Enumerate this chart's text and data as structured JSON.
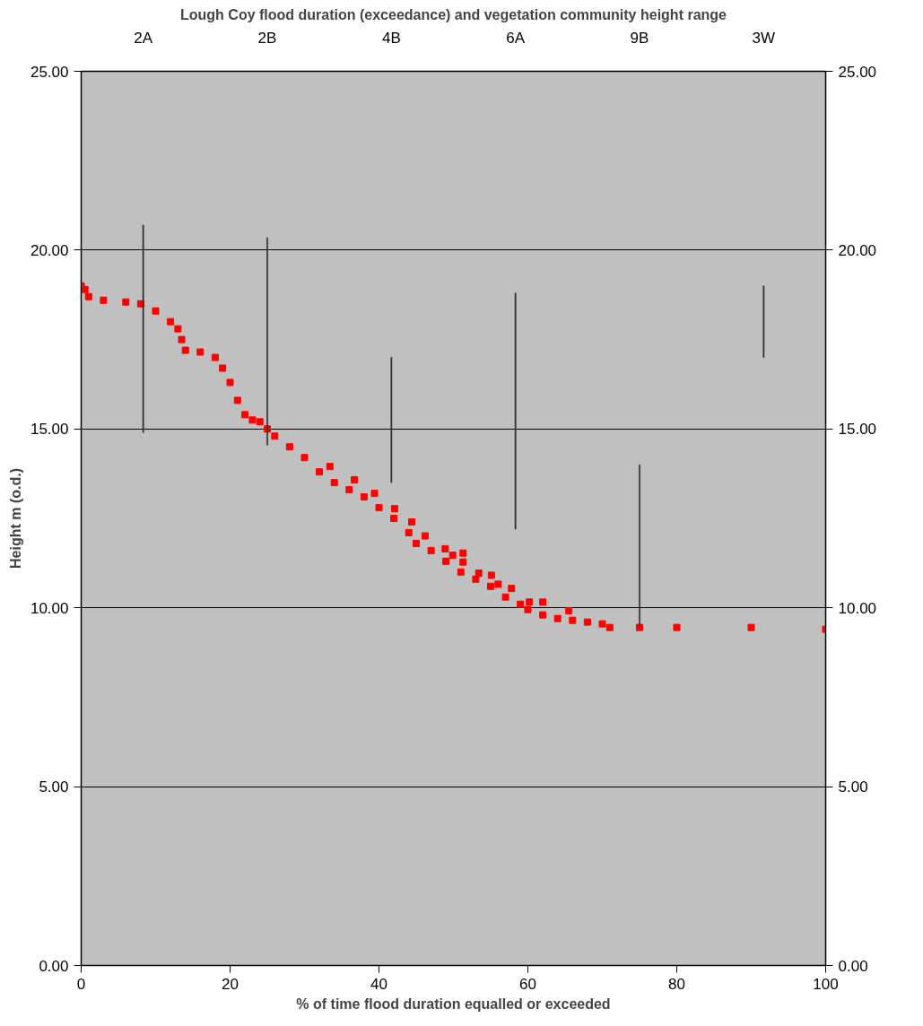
{
  "chart_data": {
    "type": "scatter",
    "title": "Lough Coy flood duration (exceedance) and vegetation community height range",
    "xlabel": "% of time flood duration equalled or exceeded",
    "ylabel": "Height m (o.d.)",
    "xlim": [
      0,
      100
    ],
    "xticks": [
      0,
      20,
      40,
      60,
      80,
      100
    ],
    "ylim": [
      0,
      25
    ],
    "yticks": [
      {
        "value": 0,
        "label": "0.00"
      },
      {
        "value": 5,
        "label": "5.00"
      },
      {
        "value": 10,
        "label": "10.00"
      },
      {
        "value": 15,
        "label": "15.00"
      },
      {
        "value": 20,
        "label": "20.00"
      },
      {
        "value": 25,
        "label": "25.00"
      }
    ],
    "y2lim": [
      0,
      25
    ],
    "y2ticks": [
      {
        "value": 0,
        "label": "0.00"
      },
      {
        "value": 5,
        "label": "5.00"
      },
      {
        "value": 10,
        "label": "10.00"
      },
      {
        "value": 15,
        "label": "15.00"
      },
      {
        "value": 20,
        "label": "20.00"
      },
      {
        "value": 25,
        "label": "25.00"
      }
    ],
    "annotations": [
      "2A",
      "2B",
      "4B",
      "6A",
      "9B",
      "3W"
    ],
    "grid": "y",
    "marker": "square",
    "series": [
      {
        "color": "#ff0000",
        "x": [
          0,
          0.5,
          1,
          3,
          6,
          8,
          10,
          12,
          13,
          13.5,
          14,
          16,
          18,
          19,
          20,
          21,
          22,
          23,
          24,
          25,
          26,
          28,
          30,
          32,
          33.4,
          34,
          36,
          36.7,
          38,
          39.4,
          40,
          42,
          42.1,
          44,
          44.4,
          45,
          46.2,
          47,
          48.9,
          49,
          49.9,
          51,
          51.3,
          51.3,
          53,
          53.4,
          55,
          55.1,
          56,
          57,
          57.8,
          59,
          60,
          60.2,
          62,
          62,
          64,
          65.5,
          66,
          68,
          70,
          71,
          75,
          80,
          90,
          100
        ],
        "values": [
          19.0,
          18.9,
          18.7,
          18.6,
          18.55,
          18.5,
          18.3,
          18.0,
          17.8,
          17.5,
          17.2,
          17.15,
          17.0,
          16.7,
          16.3,
          15.8,
          15.4,
          15.25,
          15.2,
          15.0,
          14.8,
          14.5,
          14.2,
          13.8,
          13.95,
          13.5,
          13.3,
          13.58,
          13.1,
          13.2,
          12.8,
          12.5,
          12.77,
          12.1,
          12.4,
          11.8,
          12.01,
          11.6,
          11.65,
          11.3,
          11.47,
          11.0,
          11.53,
          11.28,
          10.8,
          10.97,
          10.6,
          10.91,
          10.66,
          10.3,
          10.54,
          10.1,
          9.95,
          10.16,
          9.8,
          10.16,
          9.7,
          9.92,
          9.65,
          9.6,
          9.55,
          9.45,
          9.45,
          9.45,
          9.45,
          9.4
        ]
      },
      {
        "type": "bar",
        "color": "#303030",
        "x": [
          8.33,
          25,
          41.67,
          58.33,
          75,
          91.67
        ],
        "base": [
          14.9,
          14.55,
          13.5,
          12.2,
          9.5,
          17.0
        ],
        "values": [
          5.8,
          5.8,
          3.5,
          6.6,
          4.5,
          2.0
        ]
      }
    ]
  }
}
